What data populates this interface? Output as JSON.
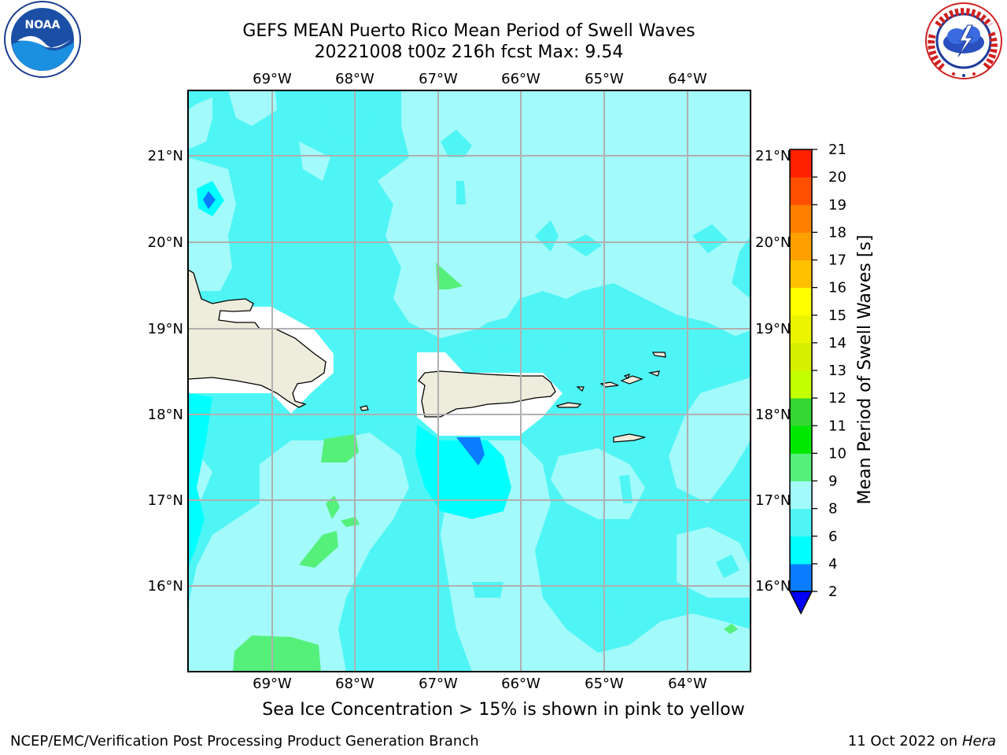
{
  "header": {
    "title_line1": "GEFS MEAN Puerto Rico Mean Period of Swell Waves",
    "title_line2": "20221008 t00z 216h fcst   Max: 9.54"
  },
  "logos": {
    "left": "noaa-logo",
    "right": "national-weather-service-logo",
    "noaa_text": "NOAA",
    "nws_text": "NATIONAL WEATHER SERVICE"
  },
  "map": {
    "longitude_labels": [
      "69°W",
      "68°W",
      "67°W",
      "66°W",
      "65°W",
      "64°W"
    ],
    "latitude_labels": [
      "21°N",
      "20°N",
      "19°N",
      "18°N",
      "17°N",
      "16°N"
    ],
    "land_color": "#eeecdc",
    "grid_color": "#b0b0b0"
  },
  "colorbar": {
    "label": "Mean Period of Swell Waves [s]",
    "ticks": [
      "2",
      "4",
      "6",
      "8",
      "9",
      "10",
      "11",
      "12",
      "13",
      "14",
      "15",
      "16",
      "17",
      "18",
      "19",
      "20",
      "21"
    ],
    "levels": [
      {
        "from": 2,
        "to": 4,
        "color": "#0a7cff"
      },
      {
        "from": 4,
        "to": 6,
        "color": "#00ffff"
      },
      {
        "from": 6,
        "to": 8,
        "color": "#4ff5f5"
      },
      {
        "from": 8,
        "to": 9,
        "color": "#a3fafa"
      },
      {
        "from": 9,
        "to": 10,
        "color": "#55f07a"
      },
      {
        "from": 10,
        "to": 11,
        "color": "#00e800"
      },
      {
        "from": 11,
        "to": 12,
        "color": "#33d633"
      },
      {
        "from": 12,
        "to": 13,
        "color": "#c2ff00"
      },
      {
        "from": 13,
        "to": 14,
        "color": "#d7f000"
      },
      {
        "from": 14,
        "to": 15,
        "color": "#ecf500"
      },
      {
        "from": 15,
        "to": 16,
        "color": "#ffff00"
      },
      {
        "from": 16,
        "to": 17,
        "color": "#ffc000"
      },
      {
        "from": 17,
        "to": 18,
        "color": "#ffa000"
      },
      {
        "from": 18,
        "to": 19,
        "color": "#ff8000"
      },
      {
        "from": 19,
        "to": 20,
        "color": "#ff5000"
      },
      {
        "from": 20,
        "to": 21,
        "color": "#ff2000"
      }
    ],
    "under_color": "#0000ff"
  },
  "subtitle": "Sea Ice Concentration > 15% is shown in pink to yellow",
  "footer": {
    "left": "NCEP/EMC/Verification Post Processing Product Generation Branch",
    "right_date": "11 Oct 2022 on",
    "right_host": "Hera"
  }
}
